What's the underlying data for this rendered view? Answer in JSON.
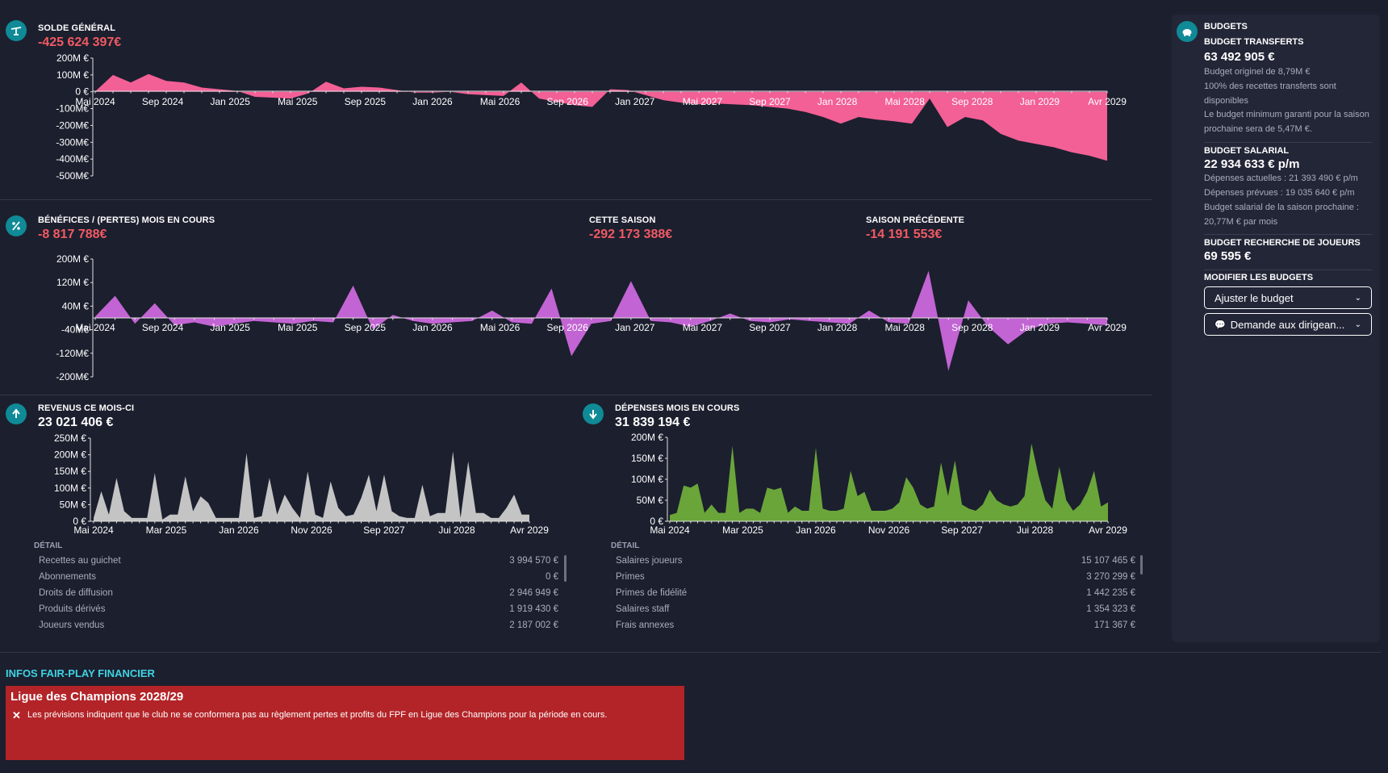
{
  "colors": {
    "background": "#1c1f2e",
    "accent": "#0f8a96",
    "negative": "#f05a63",
    "balance_area": "#f26096",
    "profit_area": "#c264d3",
    "revenue_area": "#c4c4c4",
    "expense_area": "#6aa53a",
    "ffp_box": "#b32428",
    "ffp_title": "#3fd3e3"
  },
  "icons": {
    "balance": "scale-icon",
    "profit": "percent-icon",
    "revenue": "arrow-up-icon",
    "expense": "arrow-down-icon",
    "budget": "piggy-bank-icon",
    "close": "close-icon",
    "chat": "speech-bubble-icon",
    "chevron": "chevron-down-icon"
  },
  "balance": {
    "label": "SOLDE GÉNÉRAL",
    "value": "-425 624 397€"
  },
  "profit": {
    "label": "BÉNÉFICES / (PERTES) MOIS EN COURS",
    "value": "-8 817 788€",
    "season_label": "CETTE SAISON",
    "season_value": "-292 173 388€",
    "prev_label": "SAISON PRÉCÉDENTE",
    "prev_value": "-14 191 553€"
  },
  "revenue": {
    "label": "REVENUS CE MOIS-CI",
    "value": "23 021 406 €",
    "detail_label": "DÉTAIL",
    "rows": [
      {
        "name": "Recettes au guichet",
        "amount": "3 994 570 €"
      },
      {
        "name": "Abonnements",
        "amount": "0 €"
      },
      {
        "name": "Droits de diffusion",
        "amount": "2 946 949 €"
      },
      {
        "name": "Produits dérivés",
        "amount": "1 919 430 €"
      },
      {
        "name": "Joueurs vendus",
        "amount": "2 187 002 €"
      }
    ]
  },
  "expense": {
    "label": "DÉPENSES MOIS EN COURS",
    "value": "31 839 194 €",
    "detail_label": "DÉTAIL",
    "rows": [
      {
        "name": "Salaires joueurs",
        "amount": "15 107 465 €"
      },
      {
        "name": "Primes",
        "amount": "3 270 299 €"
      },
      {
        "name": "Primes de fidélité",
        "amount": "1 442 235 €"
      },
      {
        "name": "Salaires staff",
        "amount": "1 354 323 €"
      },
      {
        "name": "Frais annexes",
        "amount": "171 367 €"
      }
    ]
  },
  "budgets": {
    "title": "BUDGETS",
    "transfer_label": "BUDGET TRANSFERTS",
    "transfer_value": "63 492 905 €",
    "transfer_notes": [
      "Budget originel de 8,79M €",
      "100% des recettes transferts sont disponibles",
      "Le budget minimum garanti pour la saison prochaine sera de 5,47M €."
    ],
    "wage_label": "BUDGET SALARIAL",
    "wage_value": "22 934 633 € p/m",
    "wage_notes": [
      "Dépenses actuelles : 21 393 490 € p/m",
      "Dépenses prévues : 19 035 640 € p/m",
      "Budget salarial de la saison prochaine : 20,77M € par mois"
    ],
    "scouting_label": "BUDGET RECHERCHE DE JOUEURS",
    "scouting_value": "69 595 €",
    "modify_label": "MODIFIER LES BUDGETS",
    "adjust_button": "Ajuster le budget",
    "request_button": "Demande aux dirigean..."
  },
  "ffp": {
    "title": "INFOS FAIR-PLAY FINANCIER",
    "competition": "Ligue des Champions 2028/29",
    "message": "Les prévisions indiquent que le club ne se conformera pas au règlement pertes et profits du FPF en Ligue des Champions pour la période en cours."
  },
  "chart_data": [
    {
      "type": "area",
      "title": "SOLDE GÉNÉRAL",
      "ytick_labels": [
        "200M €",
        "100M €",
        "0 €",
        "-100M€",
        "-200M€",
        "-300M€",
        "-400M€",
        "-500M€"
      ],
      "yticks": [
        200,
        100,
        0,
        -100,
        -200,
        -300,
        -400,
        -500
      ],
      "ylim": [
        -500,
        200
      ],
      "xtick_labels": [
        "Mai 2024",
        "Sep 2024",
        "Jan 2025",
        "Mai 2025",
        "Sep 2025",
        "Jan 2026",
        "Mai 2026",
        "Sep 2026",
        "Jan 2027",
        "Mai 2027",
        "Sep 2027",
        "Jan 2028",
        "Mai 2028",
        "Sep 2028",
        "Jan 2029",
        "Avr 2029"
      ],
      "values": [
        2,
        100,
        55,
        105,
        65,
        55,
        25,
        15,
        5,
        -30,
        -35,
        -40,
        -10,
        60,
        20,
        30,
        25,
        10,
        -5,
        -5,
        0,
        -15,
        -20,
        -25,
        55,
        -40,
        -60,
        -80,
        -90,
        15,
        10,
        -20,
        -50,
        -65,
        -75,
        -70,
        -75,
        -80,
        -90,
        -100,
        -120,
        -150,
        -190,
        -150,
        -165,
        -175,
        -190,
        -40,
        -210,
        -150,
        -170,
        -250,
        -290,
        -310,
        -330,
        -360,
        -380,
        -410
      ]
    },
    {
      "type": "area",
      "title": "BÉNÉFICES / (PERTES) MOIS EN COURS",
      "ytick_labels": [
        "200M €",
        "120M €",
        "40M €",
        "-40M€",
        "-120M€",
        "-200M€"
      ],
      "yticks": [
        200,
        120,
        40,
        -40,
        -120,
        -200
      ],
      "ylim": [
        -200,
        200
      ],
      "xtick_labels": [
        "Mai 2024",
        "Sep 2024",
        "Jan 2025",
        "Mai 2025",
        "Sep 2025",
        "Jan 2026",
        "Mai 2026",
        "Sep 2026",
        "Jan 2027",
        "Mai 2027",
        "Sep 2027",
        "Jan 2028",
        "Mai 2028",
        "Sep 2028",
        "Jan 2029",
        "Avr 2029"
      ],
      "values": [
        5,
        75,
        -20,
        50,
        -25,
        -15,
        -30,
        -20,
        -10,
        -15,
        -20,
        -10,
        -15,
        110,
        -40,
        10,
        -10,
        -20,
        -15,
        -10,
        25,
        -15,
        -20,
        100,
        -130,
        -20,
        -10,
        125,
        -10,
        -15,
        -30,
        -10,
        15,
        -10,
        -15,
        -5,
        -10,
        -15,
        -20,
        25,
        -15,
        -20,
        160,
        -180,
        60,
        -30,
        -90,
        -40,
        -20,
        -15,
        -20,
        -25
      ]
    },
    {
      "type": "area",
      "title": "REVENUS CE MOIS-CI",
      "ytick_labels": [
        "250M €",
        "200M €",
        "150M €",
        "100M €",
        "50M €",
        "0 €"
      ],
      "yticks": [
        250,
        200,
        150,
        100,
        50,
        0
      ],
      "ylim": [
        0,
        250
      ],
      "xtick_labels": [
        "Mai 2024",
        "Mar 2025",
        "Jan 2026",
        "Nov 2026",
        "Sep 2027",
        "Jui 2028",
        "Avr 2029"
      ],
      "values": [
        10,
        90,
        20,
        130,
        30,
        10,
        10,
        10,
        145,
        5,
        20,
        20,
        135,
        30,
        75,
        55,
        10,
        10,
        10,
        10,
        205,
        10,
        15,
        130,
        20,
        80,
        40,
        10,
        150,
        20,
        10,
        120,
        40,
        15,
        20,
        70,
        140,
        30,
        140,
        30,
        15,
        10,
        10,
        110,
        15,
        25,
        25,
        210,
        10,
        180,
        25,
        25,
        10,
        10,
        40,
        80,
        20,
        20
      ]
    },
    {
      "type": "area",
      "title": "DÉPENSES MOIS EN COURS",
      "ytick_labels": [
        "200M €",
        "150M €",
        "100M €",
        "50M €",
        "0 €"
      ],
      "yticks": [
        200,
        150,
        100,
        50,
        0
      ],
      "ylim": [
        0,
        200
      ],
      "xtick_labels": [
        "Mai 2024",
        "Mar 2025",
        "Jan 2026",
        "Nov 2026",
        "Sep 2027",
        "Jui 2028",
        "Avr 2029"
      ],
      "values": [
        15,
        20,
        85,
        80,
        90,
        20,
        40,
        20,
        20,
        180,
        20,
        30,
        30,
        20,
        80,
        75,
        80,
        20,
        35,
        25,
        25,
        175,
        30,
        25,
        25,
        30,
        120,
        60,
        70,
        25,
        25,
        25,
        30,
        45,
        105,
        80,
        40,
        30,
        35,
        140,
        60,
        145,
        40,
        30,
        25,
        40,
        75,
        50,
        40,
        35,
        40,
        60,
        185,
        110,
        50,
        30,
        130,
        50,
        25,
        40,
        70,
        120,
        35,
        45
      ]
    }
  ]
}
